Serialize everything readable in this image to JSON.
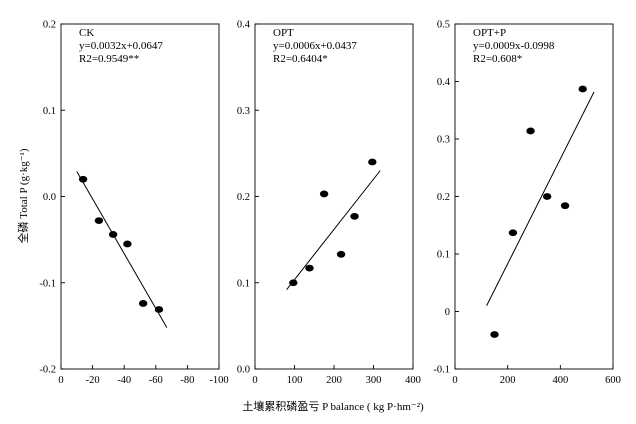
{
  "figure": {
    "ylabel": "全磷 Total P (g·kg⁻¹)",
    "xlabel": "土壤累积磷盈亏 P  balance ( kg P·hm⁻²)"
  },
  "chart_data": [
    {
      "type": "scatter",
      "title": "CK",
      "equation": "y=0.0032x+0.0647",
      "r2": "R2=0.9549**",
      "xlim": [
        0,
        -100
      ],
      "ylim": [
        -0.2,
        0.2
      ],
      "xticks": [
        0,
        -20,
        -40,
        -60,
        -80,
        -100
      ],
      "xtick_labels": [
        "0",
        "-20",
        "-40",
        "-60",
        "-80",
        "-100"
      ],
      "yticks": [
        -0.2,
        -0.1,
        0.0,
        0.1,
        0.2
      ],
      "ytick_labels": [
        "-0.2",
        "-0.1",
        "0.0",
        "0.1",
        "0.2"
      ],
      "points": [
        {
          "x": -14,
          "y": 0.02
        },
        {
          "x": -24,
          "y": -0.028
        },
        {
          "x": -33,
          "y": -0.044
        },
        {
          "x": -42,
          "y": -0.055
        },
        {
          "x": -52,
          "y": -0.124
        },
        {
          "x": -62,
          "y": -0.131
        }
      ],
      "fit_line": {
        "x": [
          -10,
          -67
        ],
        "y": [
          0.029,
          -0.152
        ]
      }
    },
    {
      "type": "scatter",
      "title": "OPT",
      "equation": "y=0.0006x+0.0437",
      "r2": "R2=0.6404*",
      "xlim": [
        0,
        400
      ],
      "ylim": [
        0.0,
        0.4
      ],
      "xticks": [
        0,
        100,
        200,
        300,
        400
      ],
      "xtick_labels": [
        "0",
        "100",
        "200",
        "300",
        "400"
      ],
      "yticks": [
        0.0,
        0.1,
        0.2,
        0.3,
        0.4
      ],
      "ytick_labels": [
        "0.0",
        "0.1",
        "0.2",
        "0.3",
        "0.4"
      ],
      "points": [
        {
          "x": 97,
          "y": 0.1
        },
        {
          "x": 138,
          "y": 0.117
        },
        {
          "x": 175,
          "y": 0.203
        },
        {
          "x": 218,
          "y": 0.133
        },
        {
          "x": 252,
          "y": 0.177
        },
        {
          "x": 297,
          "y": 0.24
        }
      ],
      "fit_line": {
        "x": [
          80,
          317
        ],
        "y": [
          0.092,
          0.23
        ]
      }
    },
    {
      "type": "scatter",
      "title": "OPT+P",
      "equation": "y=0.0009x-0.0998",
      "r2": "R2=0.608*",
      "xlim": [
        0,
        600
      ],
      "ylim": [
        -0.1,
        0.5
      ],
      "xticks": [
        0,
        200,
        400,
        600
      ],
      "xtick_labels": [
        "0",
        "200",
        "400",
        "600"
      ],
      "yticks": [
        -0.1,
        0.0,
        0.1,
        0.2,
        0.3,
        0.4,
        0.5
      ],
      "ytick_labels": [
        "-0.1",
        "0",
        "0.1",
        "0.2",
        "0.3",
        "0.4",
        "0.5"
      ],
      "points": [
        {
          "x": 150,
          "y": -0.04
        },
        {
          "x": 220,
          "y": 0.137
        },
        {
          "x": 287,
          "y": 0.314
        },
        {
          "x": 350,
          "y": 0.2
        },
        {
          "x": 418,
          "y": 0.184
        },
        {
          "x": 485,
          "y": 0.387
        }
      ],
      "fit_line": {
        "x": [
          120,
          528
        ],
        "y": [
          0.01,
          0.382
        ]
      }
    }
  ]
}
